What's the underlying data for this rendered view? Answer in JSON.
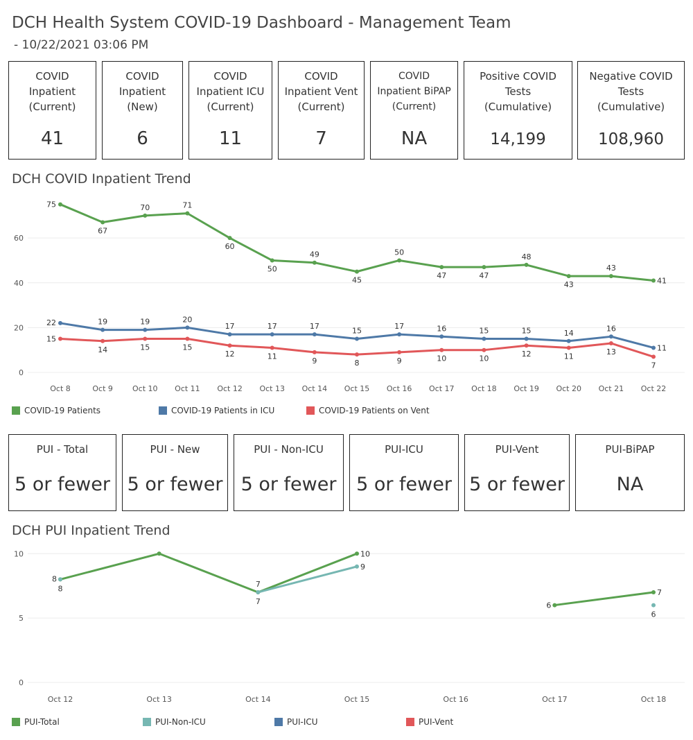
{
  "header": {
    "title": "DCH Health System COVID-19 Dashboard - Management Team",
    "subtitle": "- 10/22/2021 03:06 PM"
  },
  "colors": {
    "green": "#59a14f",
    "blue": "#4e79a7",
    "red": "#e15759",
    "teal": "#76b7b2"
  },
  "cards": [
    {
      "label": "COVID\nInpatient\n(Current)",
      "value": "41"
    },
    {
      "label": "COVID\nInpatient\n(New)",
      "value": "6"
    },
    {
      "label": "COVID\nInpatient ICU\n(Current)",
      "value": "11"
    },
    {
      "label": "COVID\nInpatient Vent\n(Current)",
      "value": "7"
    },
    {
      "label": "COVID\nInpatient BiPAP\n(Current)",
      "value": "NA"
    },
    {
      "label": "Positive COVID\nTests\n(Cumulative)",
      "value": "14,199"
    },
    {
      "label": "Negative COVID\nTests\n(Cumulative)",
      "value": "108,960"
    }
  ],
  "pui_cards": [
    {
      "label": "PUI - Total",
      "value": "5 or fewer"
    },
    {
      "label": "PUI - New",
      "value": "5 or fewer"
    },
    {
      "label": "PUI - Non-ICU",
      "value": "5 or fewer"
    },
    {
      "label": "PUI-ICU",
      "value": "5 or fewer"
    },
    {
      "label": "PUI-Vent",
      "value": "5 or fewer"
    },
    {
      "label": "PUI-BiPAP",
      "value": "NA"
    }
  ],
  "sections": {
    "trend1": "DCH COVID Inpatient Trend",
    "trend2": "DCH PUI Inpatient Trend"
  },
  "chart_data": [
    {
      "type": "line",
      "title": "DCH COVID Inpatient Trend",
      "categories": [
        "Oct 8",
        "Oct 9",
        "Oct 10",
        "Oct 11",
        "Oct 12",
        "Oct 13",
        "Oct 14",
        "Oct 15",
        "Oct 16",
        "Oct 17",
        "Oct 18",
        "Oct 19",
        "Oct 20",
        "Oct 21",
        "Oct 22"
      ],
      "yticks": [
        0,
        20,
        40,
        60
      ],
      "ylim": [
        0,
        78
      ],
      "grid": true,
      "legend": "bottom",
      "series": [
        {
          "name": "COVID-19 Patients",
          "color": "#59a14f",
          "values": [
            75,
            67,
            70,
            71,
            60,
            50,
            49,
            45,
            50,
            47,
            47,
            48,
            43,
            43,
            41
          ]
        },
        {
          "name": "COVID-19 Patients in ICU",
          "color": "#4e79a7",
          "values": [
            22,
            19,
            19,
            20,
            17,
            17,
            17,
            15,
            17,
            16,
            15,
            15,
            14,
            16,
            11
          ]
        },
        {
          "name": "COVID-19 Patients on Vent",
          "color": "#e15759",
          "values": [
            15,
            14,
            15,
            15,
            12,
            11,
            9,
            8,
            9,
            10,
            10,
            12,
            11,
            13,
            7
          ]
        }
      ]
    },
    {
      "type": "line",
      "title": "DCH PUI Inpatient Trend",
      "categories": [
        "Oct 12",
        "Oct 13",
        "Oct 14",
        "Oct 15",
        "Oct 16",
        "Oct 17",
        "Oct 18"
      ],
      "yticks": [
        0,
        5,
        10
      ],
      "ylim": [
        0,
        10.5
      ],
      "grid": true,
      "legend": "bottom",
      "series": [
        {
          "name": "PUI-Total",
          "color": "#59a14f",
          "values": [
            8,
            10,
            7,
            10,
            null,
            6,
            7
          ]
        },
        {
          "name": "PUI-Non-ICU",
          "color": "#76b7b2",
          "values": [
            8,
            null,
            7,
            9,
            null,
            null,
            6
          ]
        },
        {
          "name": "PUI-ICU",
          "color": "#4e79a7",
          "values": [
            null,
            null,
            null,
            null,
            null,
            null,
            null
          ]
        },
        {
          "name": "PUI-Vent",
          "color": "#e15759",
          "values": [
            null,
            null,
            null,
            null,
            null,
            null,
            null
          ]
        }
      ]
    }
  ]
}
